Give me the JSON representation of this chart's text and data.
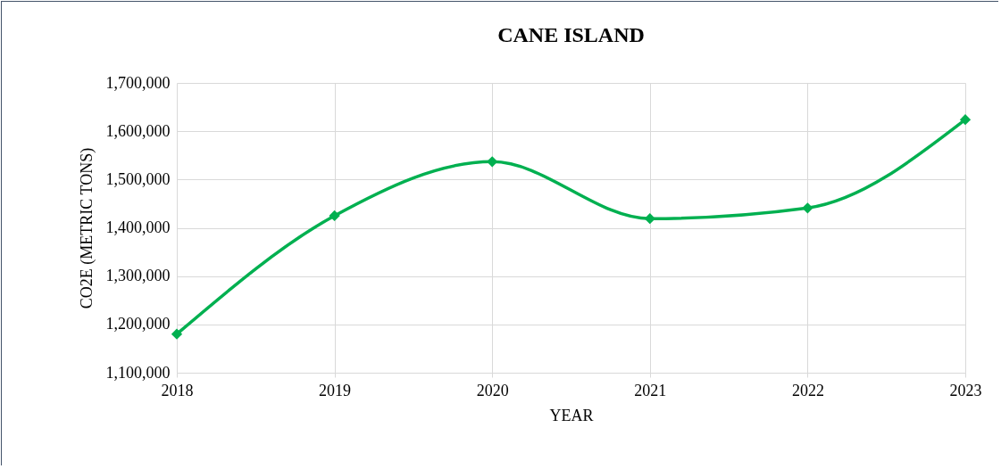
{
  "chart_data": {
    "type": "line",
    "title": "CANE ISLAND",
    "xlabel": "YEAR",
    "ylabel": "CO2E (METRIC TONS)",
    "categories": [
      "2018",
      "2019",
      "2020",
      "2021",
      "2022",
      "2023"
    ],
    "series": [
      {
        "color": "#00b050",
        "values": [
          1180000,
          1425000,
          1537000,
          1419000,
          1441000,
          1624000
        ]
      }
    ],
    "ylim": [
      1100000,
      1700000
    ],
    "yticks": [
      {
        "value": 1100000,
        "label": "1,100,000"
      },
      {
        "value": 1200000,
        "label": "1,200,000"
      },
      {
        "value": 1300000,
        "label": "1,300,000"
      },
      {
        "value": 1400000,
        "label": "1,400,000"
      },
      {
        "value": 1500000,
        "label": "1,500,000"
      },
      {
        "value": 1600000,
        "label": "1,600,000"
      },
      {
        "value": 1700000,
        "label": "1,700,000"
      }
    ],
    "grid": true,
    "marker": "diamond",
    "line_style": "solid"
  }
}
